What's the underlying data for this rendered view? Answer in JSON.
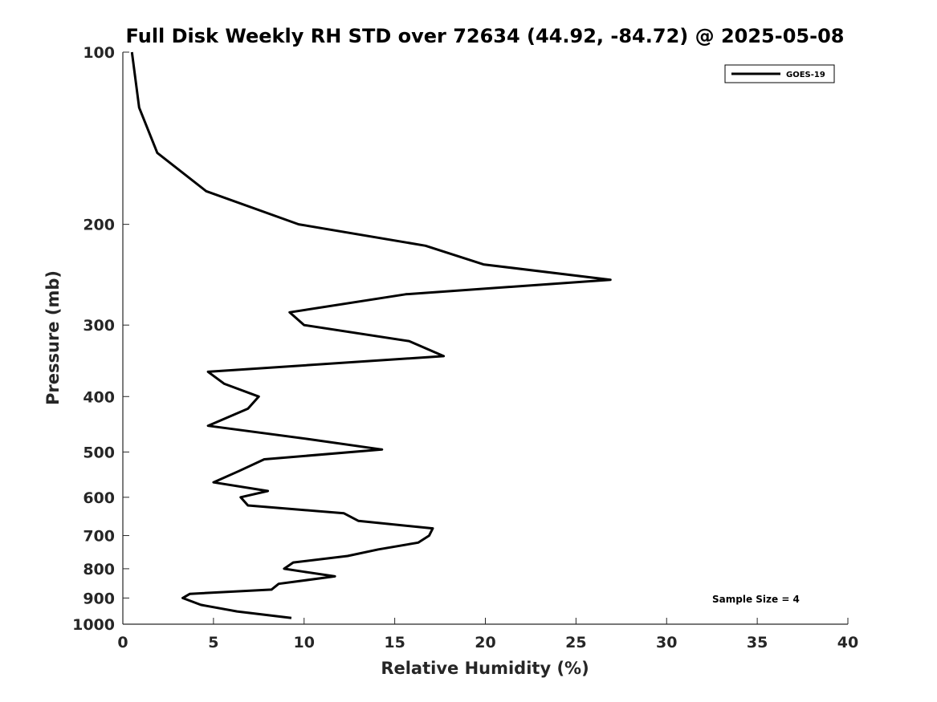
{
  "chart_data": {
    "type": "line",
    "title": "Full Disk Weekly RH STD over 72634 (44.92, -84.72) @ 2025-05-08",
    "xlabel": "Relative Humidity (%)",
    "ylabel": "Pressure (mb)",
    "xlim": [
      0,
      40
    ],
    "ylim": [
      100,
      1000
    ],
    "yscale": "log",
    "yreversed": true,
    "x_ticks": [
      0,
      5,
      10,
      15,
      20,
      25,
      30,
      35,
      40
    ],
    "y_ticks": [
      100,
      200,
      300,
      400,
      500,
      600,
      700,
      800,
      900,
      1000
    ],
    "grid": false,
    "legend": {
      "placement": "top-right",
      "entries": [
        "GOES-19"
      ]
    },
    "annotation": "Sample Size = 4",
    "series": [
      {
        "name": "GOES-19",
        "color": "#000000",
        "points": [
          [
            0.5,
            100
          ],
          [
            0.9,
            125
          ],
          [
            1.9,
            150
          ],
          [
            4.6,
            175
          ],
          [
            9.7,
            200
          ],
          [
            16.7,
            218
          ],
          [
            19.9,
            235
          ],
          [
            26.9,
            250
          ],
          [
            15.6,
            265
          ],
          [
            9.2,
            285
          ],
          [
            10.0,
            300
          ],
          [
            15.8,
            320
          ],
          [
            17.7,
            340
          ],
          [
            4.7,
            362
          ],
          [
            5.6,
            380
          ],
          [
            7.5,
            400
          ],
          [
            6.9,
            420
          ],
          [
            4.7,
            450
          ],
          [
            10.3,
            475
          ],
          [
            14.3,
            495
          ],
          [
            7.8,
            515
          ],
          [
            6.4,
            540
          ],
          [
            5.0,
            565
          ],
          [
            8.0,
            585
          ],
          [
            6.5,
            600
          ],
          [
            6.9,
            620
          ],
          [
            12.2,
            640
          ],
          [
            13.0,
            660
          ],
          [
            17.1,
            680
          ],
          [
            16.9,
            700
          ],
          [
            16.3,
            720
          ],
          [
            14.1,
            740
          ],
          [
            12.4,
            760
          ],
          [
            9.4,
            780
          ],
          [
            8.9,
            800
          ],
          [
            10.0,
            810
          ],
          [
            11.7,
            825
          ],
          [
            8.6,
            850
          ],
          [
            8.2,
            870
          ],
          [
            3.7,
            885
          ],
          [
            3.3,
            900
          ],
          [
            4.3,
            925
          ],
          [
            6.3,
            950
          ],
          [
            9.3,
            975
          ]
        ]
      }
    ]
  }
}
